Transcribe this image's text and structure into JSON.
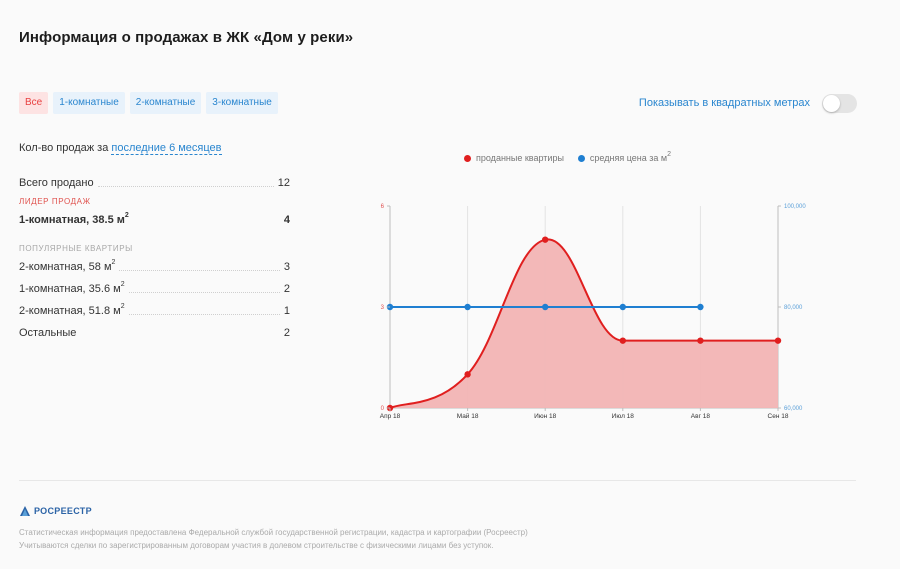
{
  "header": {
    "title": "Информация о продажах в ЖК «Дом у реки»"
  },
  "filters": [
    {
      "label": "Все",
      "active": true
    },
    {
      "label": "1-комнатные",
      "active": false
    },
    {
      "label": "2-комнатные",
      "active": false
    },
    {
      "label": "3-комнатные",
      "active": false
    }
  ],
  "toggle": {
    "label": "Показывать в квадратных метрах",
    "on": false
  },
  "period": {
    "prefix": "Кол-во продаж за",
    "link": "последние 6 месяцев"
  },
  "stats": {
    "total_label": "Всего продано",
    "total_value": "12",
    "leader_caption": "Лидер продаж",
    "leader": {
      "label": "1-комнатная, 38.5 м",
      "sup": "2",
      "value": "4"
    },
    "popular_caption": "Популярные квартиры",
    "popular": [
      {
        "label": "2-комнатная, 58 м",
        "sup": "2",
        "value": "3"
      },
      {
        "label": "1-комнатная, 35.6 м",
        "sup": "2",
        "value": "2"
      },
      {
        "label": "2-комнатная, 51.8 м",
        "sup": "2",
        "value": "1"
      }
    ],
    "other_label": "Остальные",
    "other_value": "2"
  },
  "chart_data": {
    "type": "area",
    "categories": [
      "Апр 18",
      "Май 18",
      "Июн 18",
      "Июл 18",
      "Авг 18",
      "Сен 18"
    ],
    "series": [
      {
        "name": "проданные квартиры",
        "axis": "left",
        "color": "#e01f1f",
        "values": [
          0,
          1,
          5,
          2,
          2,
          2
        ]
      },
      {
        "name": "средняя цена за м",
        "name_sup": "2",
        "axis": "right",
        "color": "#1f7fd1",
        "values": [
          80000,
          80000,
          80000,
          80000,
          80000,
          null
        ]
      }
    ],
    "y_left": {
      "ticks": [
        "0",
        "3",
        "6"
      ],
      "range": [
        0,
        6
      ]
    },
    "y_right": {
      "ticks": [
        "60,000",
        "80,000",
        "100,000"
      ],
      "range": [
        60000,
        100000
      ]
    },
    "grid": true
  },
  "footer": {
    "logo_text": "РОСРЕЕСТР",
    "note1": "Статистическая информация предоставлена Федеральной службой государственной регистрации, кадастра и картографии (Росреестр)",
    "note2": "Учитываются сделки по зарегистрированным договорам участия в долевом строительстве с физическими лицами без уступок."
  }
}
